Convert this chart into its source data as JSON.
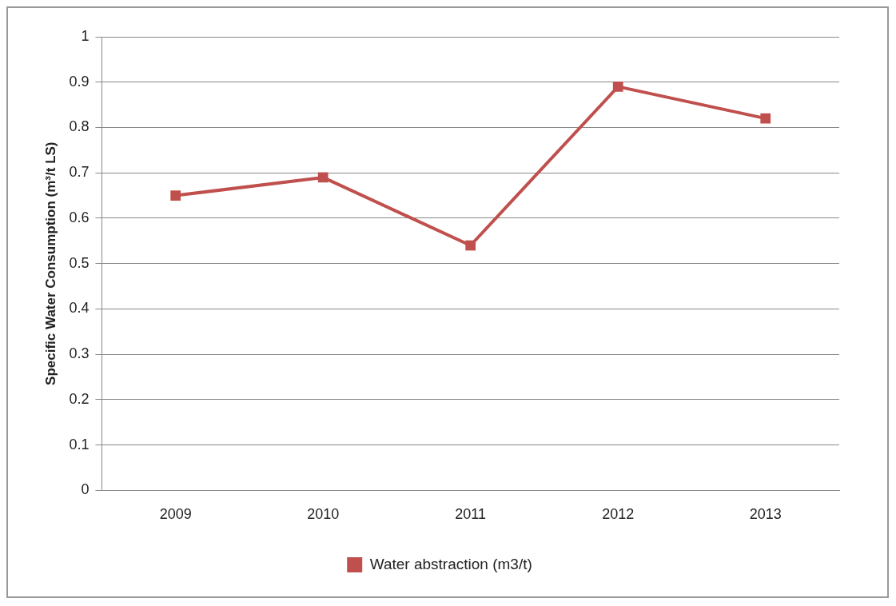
{
  "chart_data": {
    "type": "line",
    "ylabel": "Specific Water Consumption (m³/t LS)",
    "categories": [
      "2009",
      "2010",
      "2011",
      "2012",
      "2013"
    ],
    "series": [
      {
        "name": "Water abstraction (m3/t)",
        "color": "#c0504d",
        "values": [
          0.65,
          0.69,
          0.54,
          0.89,
          0.82
        ]
      }
    ],
    "ylim": [
      0,
      1
    ],
    "yticks": [
      0,
      0.1,
      0.2,
      0.3,
      0.4,
      0.5,
      0.6,
      0.7,
      0.8,
      0.9,
      1
    ],
    "grid": "y",
    "legend": "bottom",
    "marker": "square",
    "line_style": "solid"
  }
}
